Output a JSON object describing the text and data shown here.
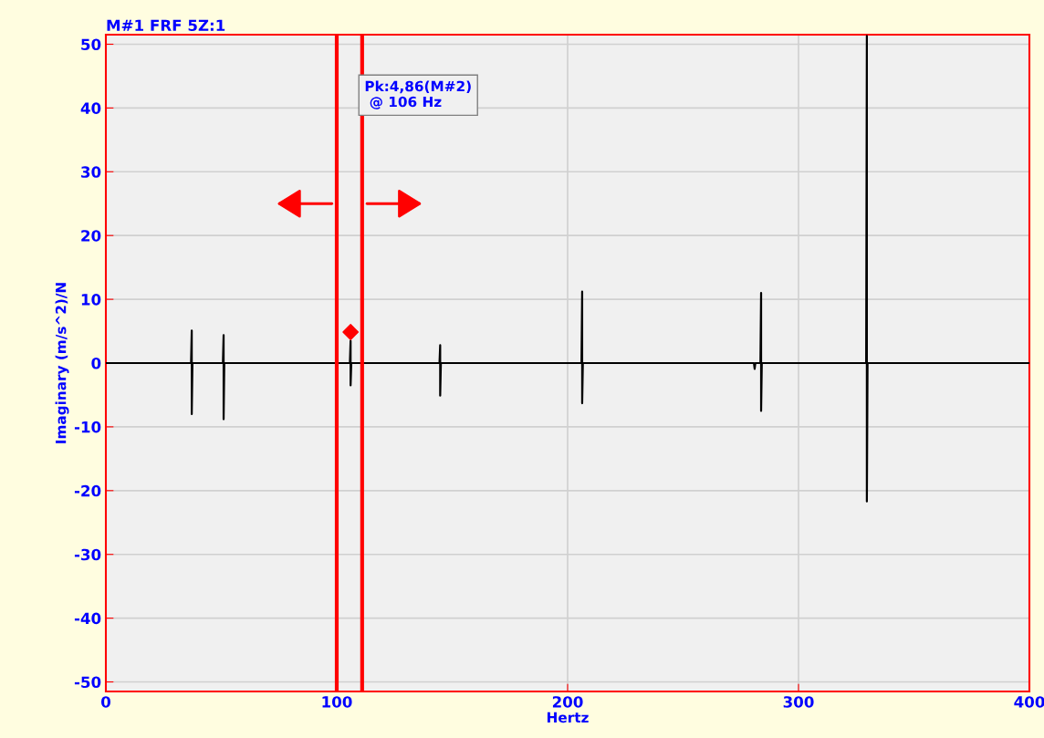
{
  "chart_data": {
    "type": "line",
    "title": "M#1 FRF 5Z:1",
    "xlabel": "Hertz",
    "ylabel": "Imaginary (m/s^2)/N",
    "xlim": [
      0,
      400
    ],
    "xticks": [
      0,
      100,
      200,
      300,
      400
    ],
    "ylim": [
      -51.5,
      51.5
    ],
    "yticks": [
      -50,
      -40,
      -30,
      -20,
      -10,
      0,
      10,
      20,
      30,
      40,
      50
    ],
    "grid": true,
    "series": [
      {
        "color": "#000000",
        "x": [
          0,
          36.9,
          37.2,
          37.2,
          37.5,
          50.7,
          51,
          51,
          51.3,
          105.7,
          106,
          106,
          106.3,
          144.5,
          144.8,
          144.8,
          145.1,
          206,
          206.3,
          206.3,
          206.6,
          280.7,
          281,
          281.3,
          283.5,
          283.8,
          283.8,
          284.1,
          329.3,
          329.6,
          329.6,
          329.9,
          400
        ],
        "values": [
          0,
          0,
          5.1,
          -8,
          0,
          0,
          4.4,
          -8.8,
          0,
          0,
          3.5,
          -3.5,
          0,
          0,
          2.8,
          -5.1,
          0,
          0,
          11.2,
          -6.3,
          0,
          0,
          -0.9,
          0,
          0,
          11,
          -7.5,
          0,
          0,
          51.3,
          -21.7,
          0,
          0
        ]
      },
      {
        "type": "scatter",
        "color": "#ff0000",
        "marker": "diamond",
        "x": [
          106
        ],
        "values": [
          4.86
        ]
      }
    ],
    "ref_lines": [
      {
        "axis": "x",
        "value": 100,
        "color": "#ff0000"
      },
      {
        "axis": "x",
        "value": 111,
        "color": "#ff0000"
      }
    ],
    "annotations": [
      "Pk:4,86(M#2)\n @ 106 Hz"
    ]
  }
}
